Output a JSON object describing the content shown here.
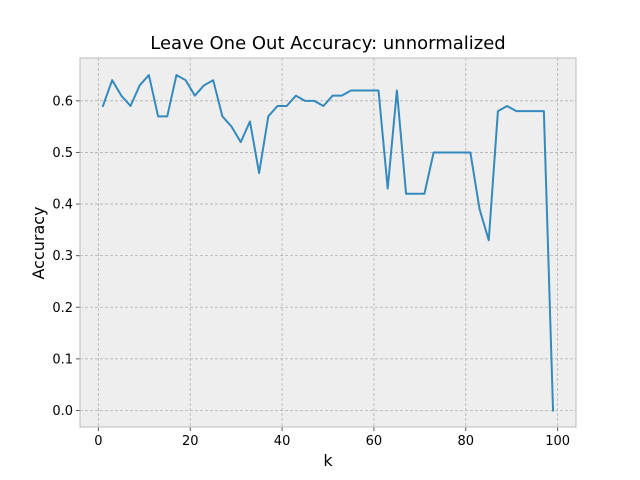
{
  "chart_data": {
    "type": "line",
    "title": "Leave One Out Accuracy: unnormalized",
    "xlabel": "k",
    "ylabel": "Accuracy",
    "xlim": [
      -4,
      104
    ],
    "ylim": [
      -0.032,
      0.683
    ],
    "xticks": [
      0,
      20,
      40,
      60,
      80,
      100
    ],
    "yticks": [
      0.0,
      0.1,
      0.2,
      0.3,
      0.4,
      0.5,
      0.6
    ],
    "ytick_labels": [
      "0.0",
      "0.1",
      "0.2",
      "0.3",
      "0.4",
      "0.5",
      "0.6"
    ],
    "grid": true,
    "series": [
      {
        "color": "#348ABD",
        "x": [
          1,
          3,
          5,
          7,
          9,
          11,
          13,
          15,
          17,
          19,
          21,
          23,
          25,
          27,
          29,
          31,
          33,
          35,
          37,
          39,
          41,
          43,
          45,
          47,
          49,
          51,
          53,
          55,
          57,
          59,
          61,
          63,
          65,
          67,
          69,
          71,
          73,
          75,
          77,
          79,
          81,
          83,
          85,
          87,
          89,
          91,
          93,
          95,
          97,
          99
        ],
        "y": [
          0.59,
          0.64,
          0.61,
          0.59,
          0.63,
          0.65,
          0.57,
          0.57,
          0.65,
          0.64,
          0.61,
          0.63,
          0.64,
          0.57,
          0.55,
          0.52,
          0.56,
          0.46,
          0.57,
          0.59,
          0.59,
          0.61,
          0.6,
          0.6,
          0.59,
          0.61,
          0.61,
          0.62,
          0.62,
          0.62,
          0.62,
          0.43,
          0.62,
          0.42,
          0.42,
          0.42,
          0.5,
          0.5,
          0.5,
          0.5,
          0.5,
          0.39,
          0.33,
          0.58,
          0.59,
          0.58,
          0.58,
          0.58,
          0.58,
          0.0
        ]
      }
    ]
  }
}
